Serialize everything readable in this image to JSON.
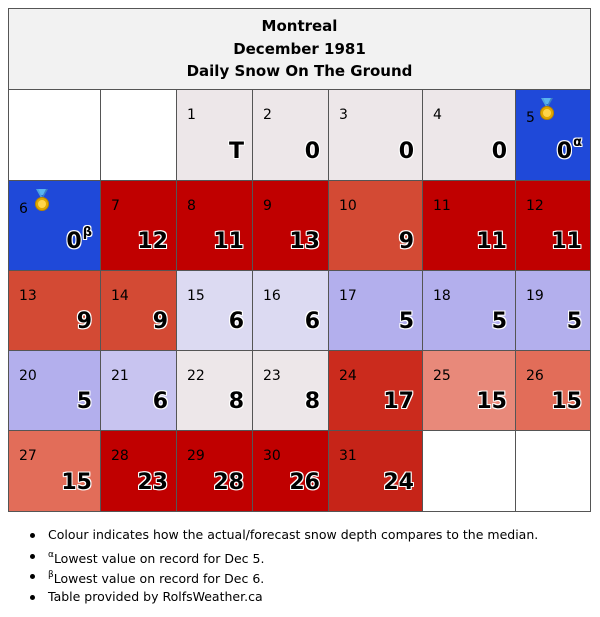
{
  "header": {
    "city": "Montreal",
    "month": "December 1981",
    "metric": "Daily Snow On The Ground"
  },
  "calendar": {
    "cells": [
      {
        "day": "",
        "value": "",
        "bg": "#ffffff"
      },
      {
        "day": "",
        "value": "",
        "bg": "#ffffff"
      },
      {
        "day": "1",
        "value": "T",
        "bg": "#ede7e9"
      },
      {
        "day": "2",
        "value": "0",
        "bg": "#ede7e9"
      },
      {
        "day": "3",
        "value": "0",
        "bg": "#ede7e9"
      },
      {
        "day": "4",
        "value": "0",
        "bg": "#ede7e9"
      },
      {
        "day": "5",
        "value": "0",
        "sup": "α",
        "bg": "#1f49d9",
        "medal": "gold-medal-icon"
      },
      {
        "day": "6",
        "value": "0",
        "sup": "β",
        "bg": "#1f49d9",
        "medal": "gold-medal-icon"
      },
      {
        "day": "7",
        "value": "12",
        "bg": "#c00000"
      },
      {
        "day": "8",
        "value": "11",
        "bg": "#c00000"
      },
      {
        "day": "9",
        "value": "13",
        "bg": "#c00000"
      },
      {
        "day": "10",
        "value": "9",
        "bg": "#d34a34"
      },
      {
        "day": "11",
        "value": "11",
        "bg": "#c00000"
      },
      {
        "day": "12",
        "value": "11",
        "bg": "#c00000"
      },
      {
        "day": "13",
        "value": "9",
        "bg": "#d34a34"
      },
      {
        "day": "14",
        "value": "9",
        "bg": "#d34a34"
      },
      {
        "day": "15",
        "value": "6",
        "bg": "#dcdaf2"
      },
      {
        "day": "16",
        "value": "6",
        "bg": "#dcdaf2"
      },
      {
        "day": "17",
        "value": "5",
        "bg": "#b3afed"
      },
      {
        "day": "18",
        "value": "5",
        "bg": "#b3afed"
      },
      {
        "day": "19",
        "value": "5",
        "bg": "#b3afed"
      },
      {
        "day": "20",
        "value": "5",
        "bg": "#b3afed"
      },
      {
        "day": "21",
        "value": "6",
        "bg": "#c8c4f0"
      },
      {
        "day": "22",
        "value": "8",
        "bg": "#ede7e9"
      },
      {
        "day": "23",
        "value": "8",
        "bg": "#ede7e9"
      },
      {
        "day": "24",
        "value": "17",
        "bg": "#cb2b1d"
      },
      {
        "day": "25",
        "value": "15",
        "bg": "#e8897a"
      },
      {
        "day": "26",
        "value": "15",
        "bg": "#e26d59"
      },
      {
        "day": "27",
        "value": "15",
        "bg": "#e26d59"
      },
      {
        "day": "28",
        "value": "23",
        "bg": "#c00000"
      },
      {
        "day": "29",
        "value": "28",
        "bg": "#c00000"
      },
      {
        "day": "30",
        "value": "26",
        "bg": "#c00000"
      },
      {
        "day": "31",
        "value": "24",
        "bg": "#c62418"
      },
      {
        "day": "",
        "value": "",
        "bg": "#ffffff"
      },
      {
        "day": "",
        "value": "",
        "bg": "#ffffff"
      }
    ]
  },
  "notes": {
    "colour": "Colour indicates how the actual/forecast snow depth compares to the median.",
    "alpha_mark": "α",
    "alpha_text": "Lowest value on record for Dec 5.",
    "beta_mark": "β",
    "beta_text": "Lowest value on record for Dec 6.",
    "provider": "Table provided by RolfsWeather.ca"
  }
}
